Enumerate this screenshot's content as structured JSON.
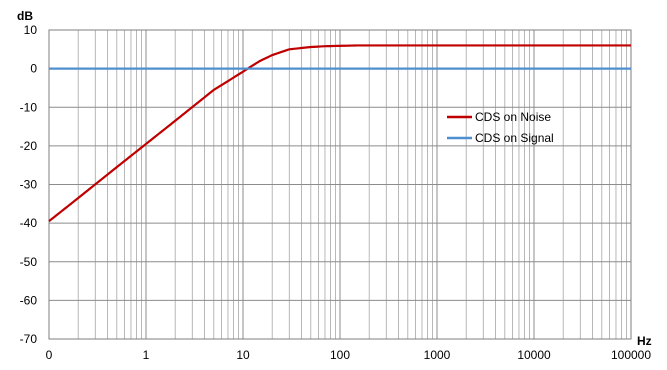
{
  "chart_data": {
    "type": "line",
    "ylabel": "dB",
    "xlabel": "Hz",
    "x_scale": "log",
    "x_tick_labels": [
      "0",
      "1",
      "10",
      "100",
      "1000",
      "10000",
      "100000"
    ],
    "y_tick_labels": [
      "10",
      "0",
      "-10",
      "-20",
      "-30",
      "-40",
      "-50",
      "-60",
      "-70"
    ],
    "ylim": [
      -70,
      10
    ],
    "grid": true,
    "legend_position": "right",
    "series": [
      {
        "name": "CDS on Noise",
        "color": "#c00000",
        "x": [
          0.1,
          0.2,
          0.5,
          1,
          2,
          5,
          10,
          12,
          15,
          20,
          30,
          50,
          70,
          100,
          150,
          1000,
          10000,
          100000
        ],
        "y": [
          -39.5,
          -33.5,
          -25.5,
          -19.5,
          -13.5,
          -5.5,
          -0.8,
          0.5,
          2.0,
          3.5,
          5.0,
          5.6,
          5.8,
          5.9,
          6.0,
          6.0,
          6.0,
          6.0
        ]
      },
      {
        "name": "CDS on Signal",
        "color": "#4f8fcf",
        "x": [
          0.1,
          100000
        ],
        "y": [
          0,
          0
        ]
      }
    ]
  }
}
